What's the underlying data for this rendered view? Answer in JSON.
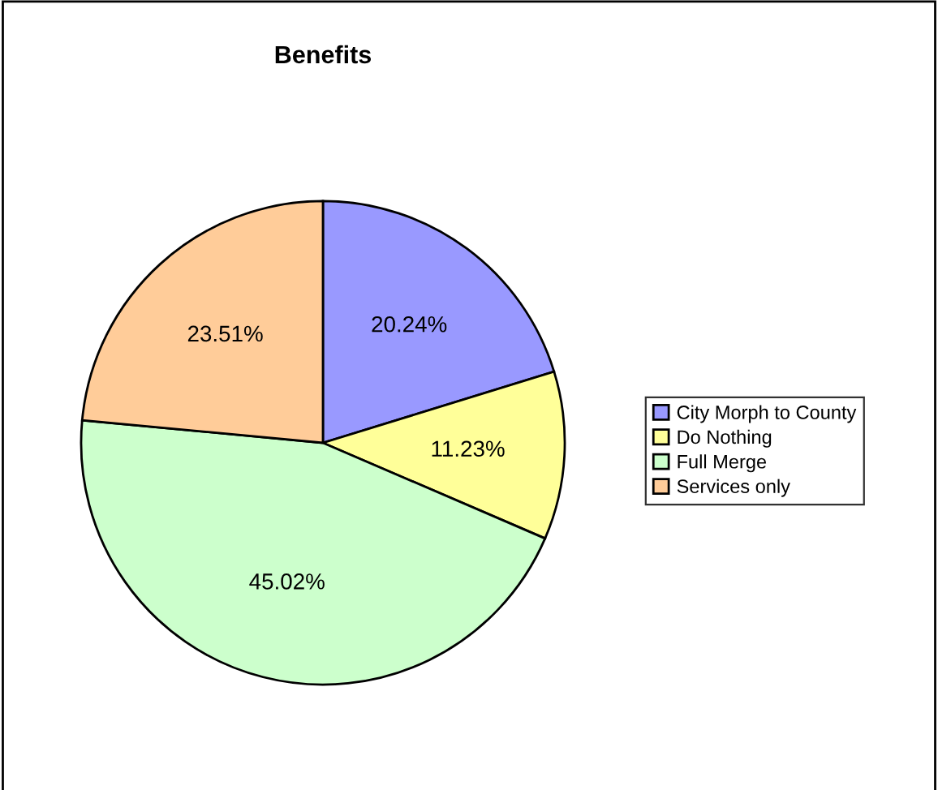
{
  "chart_data": {
    "type": "pie",
    "title": "Benefits",
    "categories": [
      "City Morph to County",
      "Do Nothing",
      "Full Merge",
      "Services only"
    ],
    "values": [
      20.24,
      11.23,
      45.02,
      23.51
    ],
    "colors": [
      "#9999ff",
      "#ffff99",
      "#ccffcc",
      "#ffcc99"
    ],
    "value_labels": [
      "20.24%",
      "11.23%",
      "45.02%",
      "23.51%"
    ],
    "legend": "right"
  }
}
